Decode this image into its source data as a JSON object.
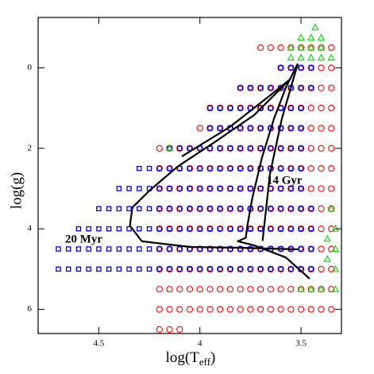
{
  "chart_data": {
    "type": "scatter",
    "xlabel": [
      "log(T",
      "eff",
      ")"
    ],
    "ylabel": "log(g)",
    "xlim": [
      4.8,
      3.3
    ],
    "ylim": [
      -1.25,
      6.6
    ],
    "xticks": [
      4.5,
      4,
      3.5
    ],
    "yticks": [
      0,
      2,
      4,
      6
    ],
    "annotations": [
      "20 Myr",
      "14 Gyr"
    ],
    "series": [
      {
        "marker": "circle",
        "color": "#ff0000",
        "rows": [
          {
            "y": -0.5,
            "x": [
              3.7,
              3.65,
              3.6,
              3.55,
              3.5,
              3.45,
              3.4,
              3.35
            ]
          },
          {
            "y": 0,
            "x": [
              3.6,
              3.55,
              3.5,
              3.45,
              3.4,
              3.35
            ]
          },
          {
            "y": 0.5,
            "x": [
              3.8,
              3.75,
              3.7,
              3.65,
              3.6,
              3.55,
              3.5,
              3.45,
              3.4,
              3.35
            ]
          },
          {
            "y": 1,
            "x": [
              3.95,
              3.9,
              3.85,
              3.8,
              3.75,
              3.7,
              3.65,
              3.6,
              3.55,
              3.5,
              3.45,
              3.4,
              3.35
            ]
          },
          {
            "y": 1.5,
            "x": [
              4,
              3.95,
              3.9,
              3.85,
              3.8,
              3.75,
              3.7,
              3.65,
              3.6,
              3.55,
              3.5,
              3.45,
              3.4,
              3.35
            ]
          },
          {
            "y": 2,
            "x": [
              4.2,
              4.15,
              4.1,
              4.05,
              4,
              3.95,
              3.9,
              3.85,
              3.8,
              3.75,
              3.7,
              3.65,
              3.6,
              3.55,
              3.5,
              3.45,
              3.4,
              3.35
            ]
          },
          {
            "y": 2.5,
            "x": [
              4.2,
              4.15,
              4.1,
              4.05,
              4,
              3.95,
              3.9,
              3.85,
              3.8,
              3.75,
              3.7,
              3.65,
              3.6,
              3.55,
              3.5,
              3.45,
              3.4,
              3.35
            ]
          },
          {
            "y": 3,
            "x": [
              4.2,
              4.15,
              4.1,
              4.05,
              4,
              3.95,
              3.9,
              3.85,
              3.8,
              3.75,
              3.7,
              3.65,
              3.6,
              3.55,
              3.5,
              3.45,
              3.4,
              3.35
            ]
          },
          {
            "y": 3.5,
            "x": [
              4.2,
              4.15,
              4.1,
              4.05,
              4,
              3.95,
              3.9,
              3.85,
              3.8,
              3.75,
              3.7,
              3.65,
              3.6,
              3.55,
              3.5,
              3.45,
              3.4,
              3.35
            ]
          },
          {
            "y": 4,
            "x": [
              4.2,
              4.15,
              4.1,
              4.05,
              4,
              3.95,
              3.9,
              3.85,
              3.8,
              3.75,
              3.7,
              3.65,
              3.6,
              3.55,
              3.5,
              3.45,
              3.4,
              3.35
            ]
          },
          {
            "y": 4.5,
            "x": [
              4.2,
              4.15,
              4.1,
              4.05,
              4,
              3.95,
              3.9,
              3.85,
              3.8,
              3.75,
              3.7,
              3.65,
              3.6,
              3.55,
              3.5,
              3.45,
              3.4,
              3.35
            ]
          },
          {
            "y": 5,
            "x": [
              4.2,
              4.15,
              4.1,
              4.05,
              4,
              3.95,
              3.9,
              3.85,
              3.8,
              3.75,
              3.7,
              3.65,
              3.6,
              3.55,
              3.5,
              3.45,
              3.4,
              3.35
            ]
          },
          {
            "y": 5.5,
            "x": [
              4.2,
              4.15,
              4.1,
              4.05,
              4,
              3.95,
              3.9,
              3.85,
              3.8,
              3.75,
              3.7,
              3.65,
              3.6,
              3.55,
              3.5,
              3.45,
              3.4,
              3.35
            ]
          },
          {
            "y": 6,
            "x": [
              4.2,
              4.15,
              4.1,
              4.05,
              4,
              3.95,
              3.9,
              3.85,
              3.8,
              3.75,
              3.7,
              3.65,
              3.6,
              3.55,
              3.5,
              3.45,
              3.4,
              3.35
            ]
          },
          {
            "y": 6.5,
            "x": [
              4.2,
              4.15,
              4.1
            ]
          }
        ]
      },
      {
        "marker": "square",
        "color": "#0000ff",
        "rows": [
          {
            "y": 0,
            "x": [
              3.6,
              3.55,
              3.5,
              3.45
            ]
          },
          {
            "y": 0.5,
            "x": [
              3.8,
              3.75,
              3.7,
              3.65,
              3.6,
              3.55,
              3.5,
              3.45
            ]
          },
          {
            "y": 1,
            "x": [
              3.95,
              3.9,
              3.85,
              3.8,
              3.75,
              3.7,
              3.65,
              3.6,
              3.55,
              3.5
            ]
          },
          {
            "y": 1.5,
            "x": [
              3.95,
              3.9,
              3.85,
              3.8,
              3.75,
              3.7,
              3.65,
              3.6,
              3.55,
              3.5
            ]
          },
          {
            "y": 2,
            "x": [
              4.15,
              4.1,
              4.05,
              4,
              3.95,
              3.9,
              3.85,
              3.8,
              3.75,
              3.7,
              3.65,
              3.6,
              3.55,
              3.5
            ]
          },
          {
            "y": 2.5,
            "x": [
              4.3,
              4.25,
              4.2,
              4.15,
              4.1,
              4.05,
              4,
              3.95,
              3.9,
              3.85,
              3.8,
              3.75,
              3.7,
              3.65,
              3.6,
              3.55,
              3.5
            ]
          },
          {
            "y": 3,
            "x": [
              4.4,
              4.35,
              4.3,
              4.25,
              4.2,
              4.15,
              4.1,
              4.05,
              4,
              3.95,
              3.9,
              3.85,
              3.8,
              3.75,
              3.7,
              3.65,
              3.6,
              3.55,
              3.5
            ]
          },
          {
            "y": 3.5,
            "x": [
              4.5,
              4.45,
              4.4,
              4.35,
              4.3,
              4.25,
              4.2,
              4.15,
              4.1,
              4.05,
              4,
              3.95,
              3.9,
              3.85,
              3.8,
              3.75,
              3.7,
              3.65,
              3.6,
              3.55,
              3.5,
              3.45
            ]
          },
          {
            "y": 4,
            "x": [
              4.6,
              4.55,
              4.5,
              4.45,
              4.4,
              4.35,
              4.3,
              4.25,
              4.2,
              4.15,
              4.1,
              4.05,
              4,
              3.95,
              3.9,
              3.85,
              3.8,
              3.75,
              3.7,
              3.65,
              3.6,
              3.55,
              3.5,
              3.45
            ]
          },
          {
            "y": 4.5,
            "x": [
              4.7,
              4.65,
              4.6,
              4.55,
              4.5,
              4.45,
              4.4,
              4.35,
              4.3,
              4.25,
              4.2,
              4.15,
              4.1,
              4.05,
              4,
              3.95,
              3.9,
              3.85,
              3.8,
              3.75,
              3.7,
              3.65,
              3.6,
              3.55,
              3.5,
              3.45
            ]
          },
          {
            "y": 5,
            "x": [
              4.7,
              4.65,
              4.6,
              4.55,
              4.5,
              4.45,
              4.4,
              4.35,
              4.3,
              4.25,
              4.2,
              4.15,
              4.1,
              4.05,
              4,
              3.95,
              3.9,
              3.85,
              3.8,
              3.75,
              3.7,
              3.65,
              3.6,
              3.55,
              3.5,
              3.45
            ]
          }
        ]
      },
      {
        "marker": "triangle",
        "color": "#00dd00",
        "rows": [
          {
            "y": -1,
            "x": [
              3.43
            ]
          },
          {
            "y": -0.75,
            "x": [
              3.5,
              3.45,
              3.4
            ]
          },
          {
            "y": -0.5,
            "x": [
              3.55,
              3.5,
              3.45,
              3.4
            ]
          },
          {
            "y": -0.25,
            "x": [
              3.55,
              3.5,
              3.45,
              3.4,
              3.35
            ]
          },
          {
            "y": 2,
            "x": [
              4.15
            ]
          },
          {
            "y": 3.5,
            "x": [
              3.35
            ]
          },
          {
            "y": 4,
            "x": [
              3.33
            ]
          },
          {
            "y": 4.25,
            "x": [
              3.37
            ]
          },
          {
            "y": 4.5,
            "x": [
              3.33
            ]
          },
          {
            "y": 4.75,
            "x": [
              3.37
            ]
          },
          {
            "y": 5,
            "x": [
              3.33
            ]
          },
          {
            "y": 5.5,
            "x": [
              3.5,
              3.45,
              3.4,
              3.33
            ]
          }
        ]
      }
    ],
    "lines": [
      {
        "color": "#000000",
        "x": [
          3.516,
          3.812,
          4.049,
          4.287,
          4.346,
          4.334,
          4.247,
          4.109,
          3.931,
          3.733,
          3.615,
          3.555
        ],
        "values": [
          4.51,
          4.47,
          4.45,
          4.31,
          3.92,
          3.47,
          3.04,
          2.45,
          1.86,
          1.18,
          0.59,
          0.29
        ]
      },
      {
        "color": "#000000",
        "x": [
          4.089,
          3.852,
          3.654,
          3.555
        ],
        "values": [
          2.2,
          1.47,
          0.69,
          0.29
        ]
      },
      {
        "color": "#000000",
        "x": [
          3.457,
          3.575,
          3.733,
          3.812,
          3.773,
          3.765,
          3.741,
          3.694,
          3.634,
          3.575,
          3.516
        ],
        "values": [
          5.24,
          4.71,
          4.41,
          4.31,
          4.22,
          3.92,
          3.24,
          2.25,
          1.27,
          0.49,
          -0.1
        ]
      },
      {
        "color": "#000000",
        "x": [
          3.516,
          3.595,
          3.654,
          3.69
        ],
        "values": [
          -0.1,
          1.27,
          2.65,
          4.3
        ]
      }
    ]
  }
}
